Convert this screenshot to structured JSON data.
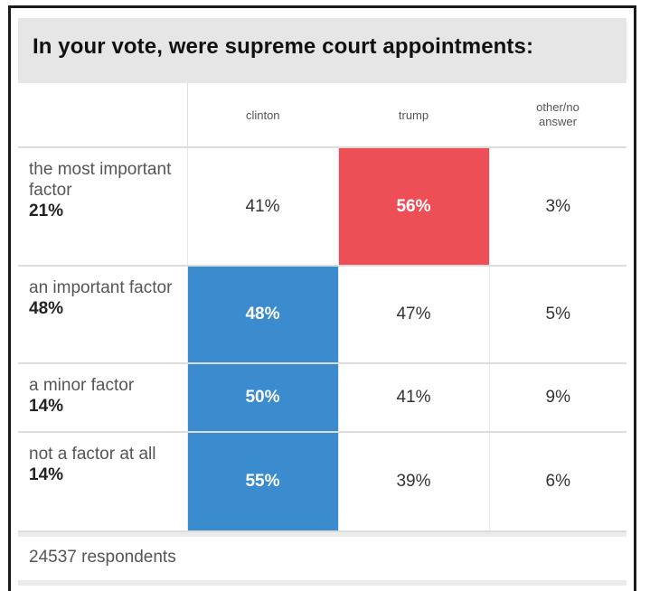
{
  "title": "In your vote, were supreme court appointments:",
  "columns": [
    "clinton",
    "trump",
    "other/no answer"
  ],
  "rows": [
    {
      "label": "the most important factor",
      "share": "21%",
      "values": [
        "41%",
        "56%",
        "3%"
      ],
      "winner": 1
    },
    {
      "label": "an important factor",
      "share": "48%",
      "values": [
        "48%",
        "47%",
        "5%"
      ],
      "winner": 0
    },
    {
      "label": "a minor factor",
      "share": "14%",
      "values": [
        "50%",
        "41%",
        "9%"
      ],
      "winner": 0
    },
    {
      "label": "not a factor at all",
      "share": "14%",
      "values": [
        "55%",
        "39%",
        "6%"
      ],
      "winner": 0
    }
  ],
  "footer": "24537 respondents",
  "colors": {
    "clinton": "#3b8ccf",
    "trump": "#ee4f56"
  },
  "chart_data": {
    "type": "table",
    "title": "In your vote, were supreme court appointments:",
    "columns": [
      "clinton",
      "trump",
      "other/no answer"
    ],
    "rows": [
      "the most important factor",
      "an important factor",
      "a minor factor",
      "not a factor at all"
    ],
    "row_shares": [
      21,
      48,
      14,
      14
    ],
    "series": [
      {
        "name": "clinton",
        "values": [
          41,
          48,
          50,
          55
        ]
      },
      {
        "name": "trump",
        "values": [
          56,
          47,
          41,
          39
        ]
      },
      {
        "name": "other/no answer",
        "values": [
          3,
          5,
          9,
          6
        ]
      }
    ],
    "respondents": 24537
  }
}
